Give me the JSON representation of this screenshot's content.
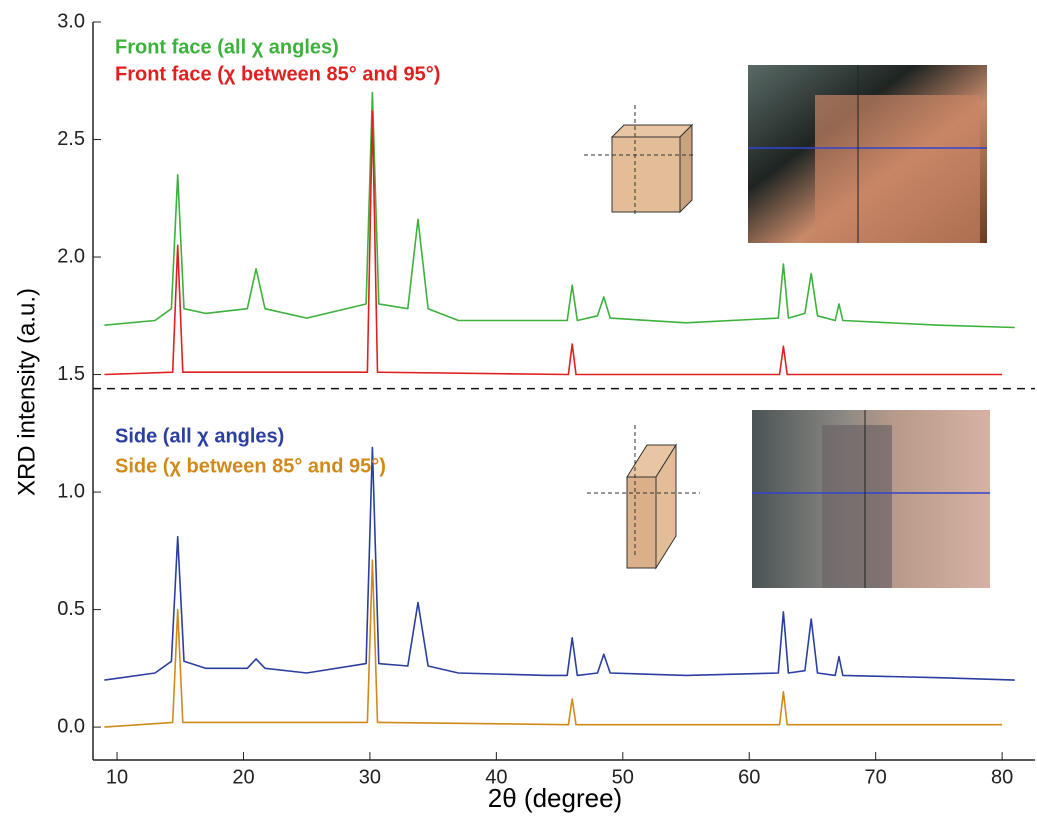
{
  "chart_data": {
    "type": "line",
    "xlabel": "2θ (degree)",
    "ylabel": "XRD intensity (a.u.)",
    "xlim": [
      8.1,
      82.6
    ],
    "ylim": [
      -0.14,
      3.0
    ],
    "xticks": [
      10,
      20,
      30,
      40,
      50,
      60,
      70,
      80
    ],
    "yticks": [
      {
        "value": 0,
        "label": "0.0"
      },
      0.5,
      {
        "value": 1,
        "label": "1.0"
      },
      1.5,
      {
        "value": 2,
        "label": "2.0"
      },
      2.5,
      {
        "value": 3,
        "label": "3.0"
      }
    ],
    "divider_y": 1.44,
    "series": [
      {
        "name": "Front face (all χ angles)",
        "color": "#3cb23c",
        "x": [
          9,
          13,
          14.3,
          14.8,
          15.3,
          17,
          20.3,
          21,
          21.7,
          25,
          29.7,
          30.2,
          30.7,
          33,
          33.8,
          34.6,
          37,
          44,
          45.6,
          46,
          46.4,
          48,
          48.5,
          49,
          55,
          62.3,
          62.7,
          63.1,
          64.4,
          64.9,
          65.4,
          66.8,
          67.1,
          67.4,
          75,
          81
        ],
        "values": [
          1.71,
          1.73,
          1.78,
          2.35,
          1.78,
          1.76,
          1.78,
          1.95,
          1.78,
          1.74,
          1.8,
          2.7,
          1.8,
          1.78,
          2.16,
          1.78,
          1.73,
          1.73,
          1.73,
          1.88,
          1.73,
          1.75,
          1.83,
          1.74,
          1.72,
          1.74,
          1.97,
          1.74,
          1.76,
          1.93,
          1.75,
          1.73,
          1.8,
          1.73,
          1.71,
          1.7
        ]
      },
      {
        "name": "Front face (χ between 85° and 95°)",
        "color": "#e02020",
        "x": [
          9,
          14.4,
          14.8,
          15.2,
          29.8,
          30.2,
          30.6,
          45.7,
          46,
          46.3,
          62.4,
          62.7,
          63,
          80
        ],
        "values": [
          1.5,
          1.51,
          2.05,
          1.51,
          1.51,
          2.62,
          1.51,
          1.5,
          1.63,
          1.5,
          1.5,
          1.62,
          1.5,
          1.5
        ]
      },
      {
        "name": "Side (all χ angles)",
        "color": "#2a3fa0",
        "x": [
          9,
          13,
          14.3,
          14.8,
          15.3,
          17,
          20.3,
          21,
          21.7,
          25,
          29.7,
          30.2,
          30.7,
          33,
          33.8,
          34.6,
          37,
          44,
          45.6,
          46,
          46.4,
          48,
          48.5,
          49,
          55,
          62.3,
          62.7,
          63.1,
          64.4,
          64.9,
          65.4,
          66.8,
          67.1,
          67.4,
          75,
          81
        ],
        "values": [
          0.2,
          0.23,
          0.28,
          0.81,
          0.28,
          0.25,
          0.25,
          0.29,
          0.25,
          0.23,
          0.27,
          1.19,
          0.27,
          0.26,
          0.53,
          0.26,
          0.23,
          0.22,
          0.22,
          0.38,
          0.22,
          0.23,
          0.31,
          0.23,
          0.22,
          0.23,
          0.49,
          0.23,
          0.24,
          0.46,
          0.23,
          0.22,
          0.3,
          0.22,
          0.21,
          0.2
        ]
      },
      {
        "name": "Side (χ between 85° and 95°)",
        "color": "#d08a1a",
        "x": [
          9,
          14.4,
          14.8,
          15.2,
          29.8,
          30.2,
          30.6,
          45.7,
          46,
          46.3,
          62.4,
          62.7,
          63,
          80
        ],
        "values": [
          0.0,
          0.02,
          0.5,
          0.02,
          0.02,
          0.71,
          0.02,
          0.01,
          0.12,
          0.01,
          0.01,
          0.15,
          0.01,
          0.01
        ]
      }
    ]
  }
}
